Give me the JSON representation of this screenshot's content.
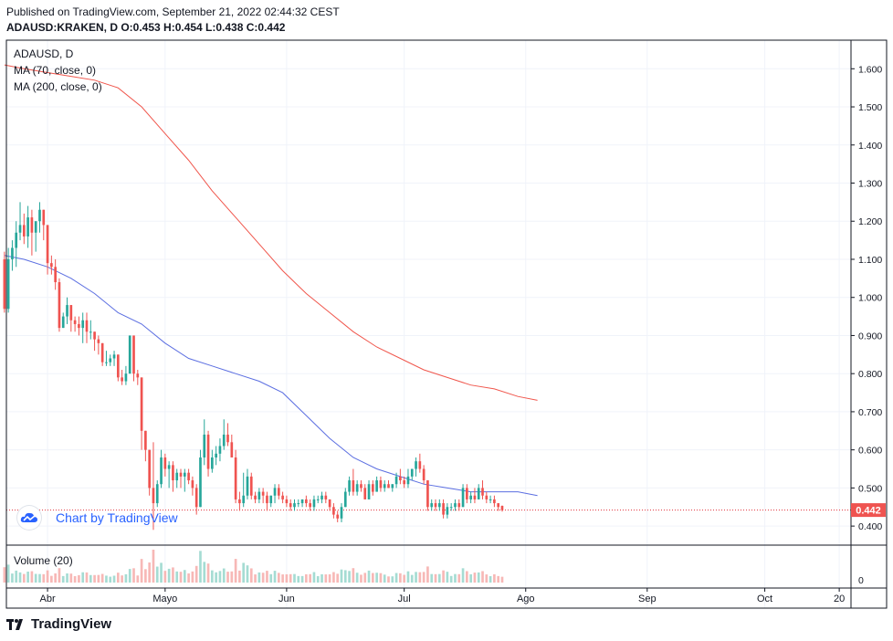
{
  "header": {
    "published": "Published on TradingView.com, September 21, 2022 02:44:32 CEST",
    "ohlc": "ADAUSD:KRAKEN, D O:0.453 H:0.454 L:0.438 C:0.442"
  },
  "legend": {
    "symbol": "ADAUSD, D",
    "ma70": "MA (70, close, 0)",
    "ma200": "MA (200, close, 0)",
    "volume": "Volume (20)"
  },
  "badge": {
    "text": "Chart by TradingView",
    "icon": "tradingview-cloud-icon"
  },
  "brand": {
    "text": "TradingView",
    "icon": "tradingview-logo-icon"
  },
  "colors": {
    "up": "#26a69a",
    "down": "#ef5350",
    "ma70": "#5b6ee1",
    "ma200": "#f0564c",
    "up_vol": "#a5dcd3",
    "down_vol": "#f7b8b6",
    "price_line": "#e0303a"
  },
  "chart_data": {
    "type": "candlestick",
    "symbol": "ADAUSD",
    "exchange": "KRAKEN",
    "interval": "D",
    "last_price": 0.442,
    "last_price_label": "0.442",
    "ylim": [
      0.35,
      1.675
    ],
    "y_ticks": [
      0.4,
      0.5,
      0.6,
      0.7,
      0.8,
      0.9,
      1.0,
      1.1,
      1.2,
      1.3,
      1.4,
      1.5,
      1.6
    ],
    "y_tick_labels": [
      "0.400",
      "0.500",
      "0.600",
      "0.700",
      "0.800",
      "0.900",
      "1.000",
      "1.100",
      "1.200",
      "1.300",
      "1.400",
      "1.500",
      "1.600"
    ],
    "x_ticks": [
      {
        "label": "Abr",
        "index": 12
      },
      {
        "label": "Mayo",
        "index": 42
      },
      {
        "label": "Jun",
        "index": 73
      },
      {
        "label": "Jul",
        "index": 103
      },
      {
        "label": "Ago",
        "index": 134
      },
      {
        "label": "Sep",
        "index": 165
      },
      {
        "label": "Oct",
        "index": 195
      },
      {
        "label": "20",
        "index": 214
      }
    ],
    "x_range": [
      1.5,
      217
    ],
    "volume_ticks": [
      "0"
    ],
    "candles": [
      [
        1.1,
        1.12,
        0.96,
        0.97
      ],
      [
        0.97,
        1.13,
        0.96,
        1.1
      ],
      [
        1.1,
        1.15,
        1.07,
        1.13
      ],
      [
        1.13,
        1.2,
        1.08,
        1.17
      ],
      [
        1.17,
        1.25,
        1.15,
        1.19
      ],
      [
        1.19,
        1.22,
        1.14,
        1.16
      ],
      [
        1.16,
        1.24,
        1.13,
        1.21
      ],
      [
        1.21,
        1.23,
        1.11,
        1.17
      ],
      [
        1.17,
        1.2,
        1.12,
        1.2
      ],
      [
        1.2,
        1.25,
        1.17,
        1.23
      ],
      [
        1.23,
        1.23,
        1.15,
        1.19
      ],
      [
        1.19,
        1.19,
        1.06,
        1.09
      ],
      [
        1.09,
        1.11,
        1.06,
        1.08
      ],
      [
        1.08,
        1.1,
        1.02,
        1.04
      ],
      [
        1.04,
        1.05,
        0.91,
        0.92
      ],
      [
        0.92,
        0.96,
        0.92,
        0.95
      ],
      [
        0.95,
        1.0,
        0.93,
        0.98
      ],
      [
        0.98,
        0.98,
        0.91,
        0.94
      ],
      [
        0.94,
        0.95,
        0.91,
        0.93
      ],
      [
        0.93,
        0.95,
        0.9,
        0.92
      ],
      [
        0.92,
        0.96,
        0.88,
        0.94
      ],
      [
        0.94,
        0.96,
        0.88,
        0.91
      ],
      [
        0.91,
        0.94,
        0.89,
        0.91
      ],
      [
        0.91,
        0.91,
        0.86,
        0.89
      ],
      [
        0.89,
        0.9,
        0.85,
        0.88
      ],
      [
        0.88,
        0.88,
        0.82,
        0.83
      ],
      [
        0.83,
        0.86,
        0.82,
        0.83
      ],
      [
        0.83,
        0.85,
        0.82,
        0.84
      ],
      [
        0.84,
        0.86,
        0.82,
        0.85
      ],
      [
        0.85,
        0.85,
        0.78,
        0.79
      ],
      [
        0.79,
        0.81,
        0.77,
        0.78
      ],
      [
        0.78,
        0.82,
        0.77,
        0.8
      ],
      [
        0.8,
        0.9,
        0.8,
        0.9
      ],
      [
        0.9,
        0.9,
        0.78,
        0.8
      ],
      [
        0.8,
        0.81,
        0.77,
        0.79
      ],
      [
        0.79,
        0.79,
        0.6,
        0.65
      ],
      [
        0.65,
        0.65,
        0.57,
        0.6
      ],
      [
        0.6,
        0.6,
        0.48,
        0.5
      ],
      [
        0.5,
        0.62,
        0.39,
        0.46
      ],
      [
        0.46,
        0.52,
        0.45,
        0.51
      ],
      [
        0.51,
        0.6,
        0.5,
        0.58
      ],
      [
        0.58,
        0.59,
        0.53,
        0.55
      ],
      [
        0.55,
        0.57,
        0.5,
        0.56
      ],
      [
        0.56,
        0.57,
        0.49,
        0.52
      ],
      [
        0.52,
        0.55,
        0.5,
        0.54
      ],
      [
        0.54,
        0.55,
        0.5,
        0.53
      ],
      [
        0.53,
        0.55,
        0.49,
        0.54
      ],
      [
        0.54,
        0.55,
        0.51,
        0.52
      ],
      [
        0.52,
        0.53,
        0.48,
        0.5
      ],
      [
        0.5,
        0.51,
        0.43,
        0.45
      ],
      [
        0.45,
        0.6,
        0.45,
        0.58
      ],
      [
        0.58,
        0.68,
        0.56,
        0.64
      ],
      [
        0.64,
        0.65,
        0.53,
        0.55
      ],
      [
        0.55,
        0.6,
        0.54,
        0.58
      ],
      [
        0.58,
        0.61,
        0.56,
        0.59
      ],
      [
        0.59,
        0.63,
        0.57,
        0.61
      ],
      [
        0.61,
        0.68,
        0.6,
        0.64
      ],
      [
        0.64,
        0.67,
        0.61,
        0.62
      ],
      [
        0.62,
        0.64,
        0.58,
        0.58
      ],
      [
        0.58,
        0.6,
        0.46,
        0.47
      ],
      [
        0.47,
        0.49,
        0.44,
        0.46
      ],
      [
        0.46,
        0.54,
        0.45,
        0.48
      ],
      [
        0.48,
        0.55,
        0.47,
        0.53
      ],
      [
        0.53,
        0.54,
        0.47,
        0.48
      ],
      [
        0.48,
        0.49,
        0.46,
        0.47
      ],
      [
        0.47,
        0.5,
        0.46,
        0.49
      ],
      [
        0.49,
        0.5,
        0.46,
        0.48
      ],
      [
        0.48,
        0.49,
        0.44,
        0.46
      ],
      [
        0.46,
        0.48,
        0.45,
        0.48
      ],
      [
        0.48,
        0.51,
        0.46,
        0.5
      ],
      [
        0.5,
        0.51,
        0.47,
        0.48
      ],
      [
        0.48,
        0.49,
        0.46,
        0.47
      ],
      [
        0.47,
        0.48,
        0.45,
        0.46
      ],
      [
        0.46,
        0.47,
        0.44,
        0.45
      ],
      [
        0.45,
        0.47,
        0.44,
        0.46
      ],
      [
        0.46,
        0.47,
        0.45,
        0.46
      ],
      [
        0.46,
        0.47,
        0.45,
        0.47
      ],
      [
        0.47,
        0.48,
        0.45,
        0.46
      ],
      [
        0.46,
        0.47,
        0.44,
        0.45
      ],
      [
        0.45,
        0.48,
        0.44,
        0.47
      ],
      [
        0.47,
        0.48,
        0.46,
        0.47
      ],
      [
        0.47,
        0.49,
        0.46,
        0.48
      ],
      [
        0.48,
        0.49,
        0.46,
        0.47
      ],
      [
        0.47,
        0.47,
        0.44,
        0.45
      ],
      [
        0.45,
        0.46,
        0.42,
        0.43
      ],
      [
        0.43,
        0.44,
        0.41,
        0.42
      ],
      [
        0.42,
        0.46,
        0.41,
        0.45
      ],
      [
        0.45,
        0.5,
        0.45,
        0.49
      ],
      [
        0.49,
        0.53,
        0.48,
        0.52
      ],
      [
        0.52,
        0.55,
        0.48,
        0.49
      ],
      [
        0.49,
        0.52,
        0.48,
        0.51
      ],
      [
        0.51,
        0.52,
        0.49,
        0.5
      ],
      [
        0.5,
        0.51,
        0.47,
        0.47
      ],
      [
        0.47,
        0.52,
        0.47,
        0.51
      ],
      [
        0.51,
        0.52,
        0.48,
        0.49
      ],
      [
        0.49,
        0.53,
        0.49,
        0.52
      ],
      [
        0.52,
        0.53,
        0.49,
        0.5
      ],
      [
        0.5,
        0.52,
        0.49,
        0.51
      ],
      [
        0.51,
        0.52,
        0.5,
        0.5
      ],
      [
        0.5,
        0.51,
        0.49,
        0.51
      ],
      [
        0.51,
        0.54,
        0.5,
        0.53
      ],
      [
        0.53,
        0.55,
        0.51,
        0.52
      ],
      [
        0.52,
        0.53,
        0.5,
        0.51
      ],
      [
        0.51,
        0.55,
        0.5,
        0.53
      ],
      [
        0.53,
        0.55,
        0.52,
        0.55
      ],
      [
        0.55,
        0.58,
        0.53,
        0.57
      ],
      [
        0.57,
        0.59,
        0.54,
        0.55
      ],
      [
        0.55,
        0.56,
        0.51,
        0.52
      ],
      [
        0.52,
        0.52,
        0.44,
        0.45
      ],
      [
        0.45,
        0.47,
        0.44,
        0.46
      ],
      [
        0.46,
        0.47,
        0.44,
        0.45
      ],
      [
        0.45,
        0.47,
        0.44,
        0.46
      ],
      [
        0.46,
        0.47,
        0.42,
        0.43
      ],
      [
        0.43,
        0.46,
        0.42,
        0.45
      ],
      [
        0.45,
        0.46,
        0.44,
        0.45
      ],
      [
        0.45,
        0.47,
        0.44,
        0.46
      ],
      [
        0.46,
        0.47,
        0.44,
        0.45
      ],
      [
        0.45,
        0.51,
        0.45,
        0.5
      ],
      [
        0.5,
        0.51,
        0.46,
        0.47
      ],
      [
        0.47,
        0.49,
        0.46,
        0.48
      ],
      [
        0.48,
        0.5,
        0.46,
        0.47
      ],
      [
        0.47,
        0.51,
        0.47,
        0.5
      ],
      [
        0.5,
        0.52,
        0.47,
        0.48
      ],
      [
        0.48,
        0.49,
        0.46,
        0.47
      ],
      [
        0.47,
        0.48,
        0.46,
        0.47
      ],
      [
        0.47,
        0.48,
        0.45,
        0.46
      ],
      [
        0.46,
        0.46,
        0.44,
        0.45
      ],
      [
        0.453,
        0.454,
        0.438,
        0.442
      ]
    ],
    "ma70": [
      [
        1,
        1.11
      ],
      [
        6,
        1.1
      ],
      [
        12,
        1.08
      ],
      [
        18,
        1.05
      ],
      [
        24,
        1.01
      ],
      [
        30,
        0.96
      ],
      [
        36,
        0.93
      ],
      [
        42,
        0.88
      ],
      [
        48,
        0.84
      ],
      [
        54,
        0.82
      ],
      [
        60,
        0.8
      ],
      [
        66,
        0.78
      ],
      [
        72,
        0.75
      ],
      [
        78,
        0.69
      ],
      [
        84,
        0.63
      ],
      [
        90,
        0.58
      ],
      [
        96,
        0.55
      ],
      [
        102,
        0.53
      ],
      [
        108,
        0.51
      ],
      [
        114,
        0.5
      ],
      [
        120,
        0.49
      ],
      [
        126,
        0.49
      ],
      [
        132,
        0.49
      ],
      [
        137,
        0.48
      ]
    ],
    "ma200": [
      [
        1,
        1.61
      ],
      [
        6,
        1.6
      ],
      [
        12,
        1.59
      ],
      [
        18,
        1.58
      ],
      [
        24,
        1.57
      ],
      [
        30,
        1.55
      ],
      [
        36,
        1.5
      ],
      [
        42,
        1.43
      ],
      [
        48,
        1.36
      ],
      [
        54,
        1.28
      ],
      [
        60,
        1.21
      ],
      [
        66,
        1.14
      ],
      [
        72,
        1.07
      ],
      [
        78,
        1.01
      ],
      [
        84,
        0.96
      ],
      [
        90,
        0.91
      ],
      [
        96,
        0.87
      ],
      [
        102,
        0.84
      ],
      [
        108,
        0.81
      ],
      [
        114,
        0.79
      ],
      [
        120,
        0.77
      ],
      [
        126,
        0.76
      ],
      [
        132,
        0.74
      ],
      [
        137,
        0.73
      ]
    ]
  }
}
